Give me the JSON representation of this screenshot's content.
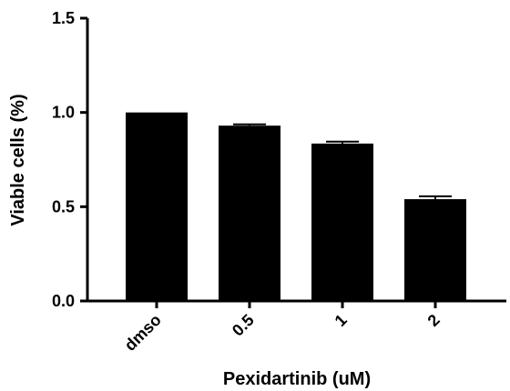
{
  "chart_data": {
    "type": "bar",
    "title": "",
    "xlabel": "Pexidartinib (uM)",
    "ylabel": "Viable cells (%)",
    "categories": [
      "dmso",
      "0.5",
      "1",
      "2"
    ],
    "values": [
      1.0,
      0.93,
      0.835,
      0.54
    ],
    "errors": [
      0.0,
      0.007,
      0.01,
      0.015
    ],
    "ylim": [
      0.0,
      1.5
    ],
    "yticks": [
      "0.0",
      "0.5",
      "1.0",
      "1.5"
    ],
    "grid": false,
    "legend": "none",
    "bar_color": "#000000"
  }
}
